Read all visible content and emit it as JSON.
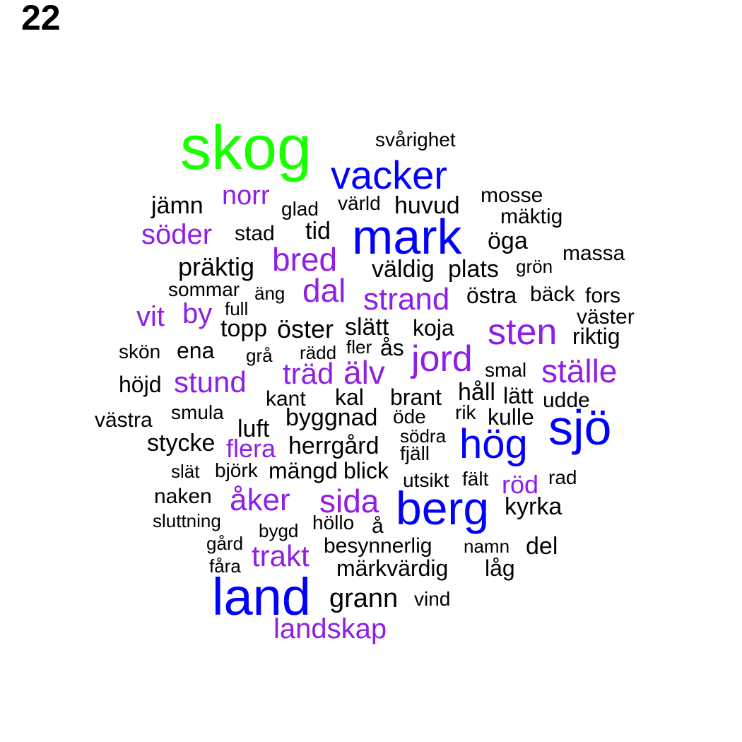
{
  "page_number": "22",
  "colors": {
    "green": "#1aff00",
    "blue": "#0000ff",
    "purple": "#8f1ee6",
    "black": "#000000"
  },
  "words": {
    "skog": "skog",
    "vacker": "vacker",
    "mark": "mark",
    "land": "land",
    "sjo": "sjö",
    "hog": "hög",
    "berg": "berg",
    "norr": "norr",
    "soder": "söder",
    "bred": "bred",
    "dal": "dal",
    "strand": "strand",
    "vit": "vit",
    "by": "by",
    "sten": "sten",
    "jord": "jord",
    "stalle": "ställe",
    "trad": "träd",
    "alv": "älv",
    "stund": "stund",
    "flera": "flera",
    "rod": "röd",
    "aker": "åker",
    "sida": "sida",
    "trakt": "trakt",
    "landskap": "landskap",
    "svarighet": "svårighet",
    "jamn": "jämn",
    "glad": "glad",
    "varld": "värld",
    "huvud": "huvud",
    "mosse": "mosse",
    "maktig": "mäktig",
    "stad": "stad",
    "tid": "tid",
    "oga": "öga",
    "massa": "massa",
    "praktig": "präktig",
    "valdig": "väldig",
    "plats": "plats",
    "gron": "grön",
    "sommar": "sommar",
    "ang": "äng",
    "ostra": "östra",
    "back": "bäck",
    "fors": "fors",
    "full": "full",
    "vaster": "väster",
    "topp": "topp",
    "oster": "öster",
    "slatt": "slätt",
    "koja": "koja",
    "riktig": "riktig",
    "skon": "skön",
    "ena": "ena",
    "gra": "grå",
    "radd": "rädd",
    "fler": "fler",
    "as": "ås",
    "smal": "smal",
    "hojd": "höjd",
    "kant": "kant",
    "kal": "kal",
    "brant": "brant",
    "hall": "håll",
    "latt": "lätt",
    "udde": "udde",
    "smula": "smula",
    "vastra": "västra",
    "byggnad": "byggnad",
    "ode": "öde",
    "rik": "rik",
    "kulle": "kulle",
    "luft": "luft",
    "stycke": "stycke",
    "sodra": "södra",
    "herrgard": "herrgård",
    "fjall": "fjäll",
    "slat": "slät",
    "bjork": "björk",
    "mangd": "mängd",
    "blick": "blick",
    "utsikt": "utsikt",
    "falt": "fält",
    "rad": "rad",
    "naken": "naken",
    "kyrka": "kyrka",
    "sluttning": "sluttning",
    "bygd": "bygd",
    "hollo": "höllo",
    "a": "å",
    "gard": "gård",
    "besynnerlig": "besynnerlig",
    "namn": "namn",
    "del": "del",
    "fara": "fåra",
    "markvardig": "märkvärdig",
    "lag": "låg",
    "grann": "grann",
    "vind": "vind"
  }
}
